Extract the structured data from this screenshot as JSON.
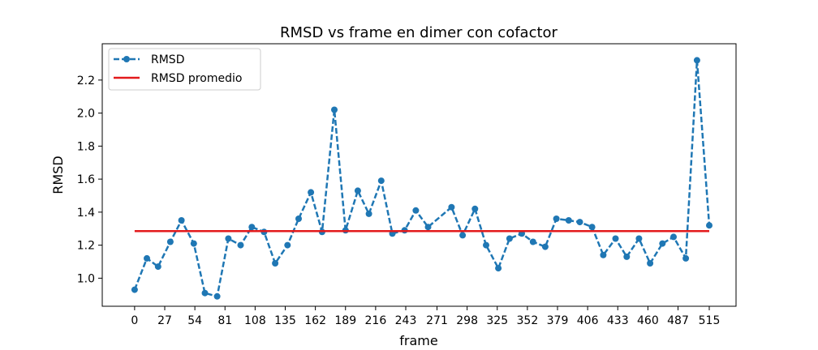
{
  "chart_data": {
    "type": "line",
    "title": "RMSD vs frame en dimer con cofactor",
    "xlabel": "frame",
    "ylabel": "RMSD",
    "xlim": [
      -29,
      539
    ],
    "ylim": [
      0.83,
      2.42
    ],
    "xticks": [
      0,
      27,
      54,
      81,
      108,
      135,
      162,
      189,
      216,
      243,
      271,
      298,
      325,
      352,
      379,
      406,
      433,
      460,
      487,
      515
    ],
    "yticks": [
      1.0,
      1.2,
      1.4,
      1.6,
      1.8,
      2.0,
      2.2
    ],
    "ytick_labels": [
      "1.0",
      "1.2",
      "1.4",
      "1.6",
      "1.8",
      "2.0",
      "2.2"
    ],
    "grid": false,
    "legend_position": "top-left",
    "legend": [
      "RMSD",
      "RMSD promedio"
    ],
    "series": [
      {
        "name": "RMSD",
        "style": "dashed-line-with-markers",
        "color": "#1f77b4",
        "x": [
          0,
          11,
          21,
          32,
          42,
          53,
          63,
          74,
          84,
          95,
          105,
          116,
          126,
          137,
          147,
          158,
          168,
          179,
          189,
          200,
          210,
          221,
          231,
          242,
          252,
          263,
          284,
          294,
          305,
          315,
          326,
          336,
          347,
          357,
          368,
          378,
          389,
          399,
          410,
          420,
          431,
          441,
          452,
          462,
          473,
          483,
          494,
          504,
          515
        ],
        "y": [
          0.93,
          1.12,
          1.07,
          1.22,
          1.35,
          1.21,
          0.91,
          0.89,
          1.24,
          1.2,
          1.31,
          1.28,
          1.09,
          1.2,
          1.36,
          1.52,
          1.28,
          2.02,
          1.29,
          1.53,
          1.39,
          1.59,
          1.27,
          1.29,
          1.41,
          1.31,
          1.43,
          1.26,
          1.42,
          1.2,
          1.06,
          1.24,
          1.27,
          1.22,
          1.19,
          1.36,
          1.35,
          1.34,
          1.31,
          1.14,
          1.24,
          1.13,
          1.24,
          1.09,
          1.21,
          1.25,
          1.12,
          2.32,
          1.32
        ]
      },
      {
        "name": "RMSD promedio",
        "style": "solid-line",
        "color": "#e31a1c",
        "x": [
          0,
          515
        ],
        "y": [
          1.285,
          1.285
        ]
      }
    ]
  }
}
